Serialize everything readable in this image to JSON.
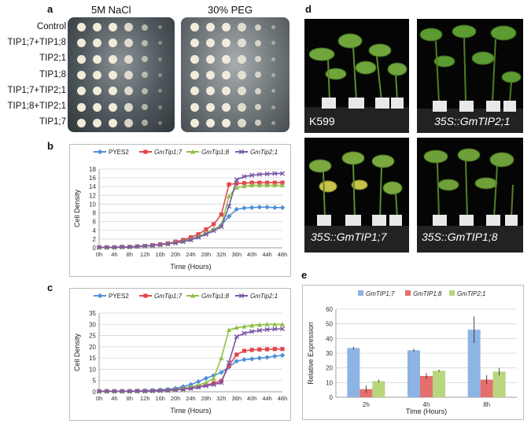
{
  "panel_labels": {
    "a": "a",
    "b": "b",
    "c": "c",
    "d": "d",
    "e": "e"
  },
  "panel_a": {
    "plate_titles": [
      "5M NaCl",
      "30% PEG"
    ],
    "rows": [
      "Control",
      "TIP1;7+TIP1;8",
      "TIP2;1",
      "TIP1;8",
      "TIP1;7+TIP2;1",
      "TIP1;8+TIP2;1",
      "TIP1;7"
    ],
    "colors": {
      "plate_nacl": "#4f585d",
      "plate_peg": "#6f7679",
      "colony": "#f1ecd9"
    }
  },
  "panel_d": {
    "photo_labels": [
      "K599",
      "35S::GmTIP2;1",
      "35S::GmTIP1;7",
      "35S::GmTIP1;8"
    ]
  },
  "chart_data": [
    {
      "id": "b",
      "type": "line",
      "title": "",
      "xlabel": "Time (Hours)",
      "ylabel": "Cell Density",
      "x": [
        "0h",
        "2h",
        "4h",
        "6h",
        "8h",
        "10h",
        "12h",
        "14h",
        "16h",
        "18h",
        "20h",
        "22h",
        "24h",
        "26h",
        "28h",
        "30h",
        "32h",
        "34h",
        "36h",
        "38h",
        "40h",
        "42h",
        "44h",
        "46h",
        "48h"
      ],
      "xtick_labels": [
        "0h",
        "4h",
        "8h",
        "12h",
        "16h",
        "20h",
        "24h",
        "28h",
        "32h",
        "36h",
        "40h",
        "44h",
        "48h"
      ],
      "ylim": [
        0,
        18
      ],
      "yticks": [
        0,
        2,
        4,
        6,
        8,
        10,
        12,
        14,
        16,
        18
      ],
      "grid": true,
      "legend": "top",
      "series": [
        {
          "name": "PYES2",
          "color": "#4f8fd8",
          "marker": "diamond",
          "values": [
            0.1,
            0.1,
            0.1,
            0.2,
            0.2,
            0.3,
            0.4,
            0.6,
            0.8,
            1.0,
            1.3,
            1.6,
            2.0,
            2.6,
            3.3,
            4.2,
            5.2,
            7.2,
            8.8,
            9.1,
            9.2,
            9.3,
            9.3,
            9.2,
            9.2
          ]
        },
        {
          "name": "GmTip1;7",
          "color": "#e2474c",
          "marker": "square",
          "values": [
            0.1,
            0.1,
            0.1,
            0.2,
            0.2,
            0.3,
            0.4,
            0.6,
            0.8,
            1.0,
            1.4,
            1.8,
            2.4,
            3.1,
            4.2,
            5.4,
            7.6,
            14.5,
            14.7,
            14.8,
            14.9,
            14.9,
            14.9,
            14.9,
            14.9
          ]
        },
        {
          "name": "GmTip1;8",
          "color": "#8fc24a",
          "marker": "triangle",
          "values": [
            0.1,
            0.1,
            0.1,
            0.2,
            0.2,
            0.3,
            0.4,
            0.5,
            0.7,
            0.9,
            1.2,
            1.5,
            1.9,
            2.6,
            3.4,
            4.2,
            5.1,
            11.8,
            13.8,
            14.1,
            14.3,
            14.3,
            14.3,
            14.3,
            14.3
          ]
        },
        {
          "name": "GmTip2;1",
          "color": "#7b56a6",
          "marker": "cross",
          "values": [
            0.1,
            0.1,
            0.1,
            0.2,
            0.2,
            0.3,
            0.4,
            0.5,
            0.7,
            0.9,
            1.1,
            1.4,
            1.8,
            2.4,
            3.1,
            3.9,
            4.8,
            9.5,
            15.6,
            16.3,
            16.6,
            16.8,
            16.9,
            17.0,
            17.0
          ]
        }
      ]
    },
    {
      "id": "c",
      "type": "line",
      "title": "",
      "xlabel": "Time (Hours)",
      "ylabel": "Cell Density",
      "x": [
        "0h",
        "2h",
        "4h",
        "6h",
        "8h",
        "10h",
        "12h",
        "14h",
        "16h",
        "18h",
        "20h",
        "22h",
        "24h",
        "26h",
        "28h",
        "30h",
        "32h",
        "34h",
        "36h",
        "38h",
        "40h",
        "42h",
        "44h",
        "46h",
        "48h"
      ],
      "xtick_labels": [
        "0h",
        "4h",
        "8h",
        "12h",
        "16h",
        "20h",
        "24h",
        "28h",
        "32h",
        "36h",
        "40h",
        "44h",
        "48h"
      ],
      "ylim": [
        0,
        35
      ],
      "yticks": [
        0,
        5,
        10,
        15,
        20,
        25,
        30,
        35
      ],
      "grid": true,
      "legend": "top",
      "series": [
        {
          "name": "PYES2",
          "color": "#4f8fd8",
          "marker": "diamond",
          "values": [
            0.3,
            0.3,
            0.3,
            0.3,
            0.3,
            0.4,
            0.5,
            0.6,
            0.8,
            1.1,
            1.5,
            2.3,
            3.2,
            4.5,
            6.0,
            7.2,
            8.6,
            11.0,
            13.6,
            14.3,
            14.6,
            15.0,
            15.3,
            15.8,
            16.2
          ]
        },
        {
          "name": "GmTip1;7",
          "color": "#e2474c",
          "marker": "square",
          "values": [
            0.2,
            0.2,
            0.2,
            0.2,
            0.2,
            0.3,
            0.3,
            0.4,
            0.5,
            0.6,
            0.8,
            1.2,
            1.6,
            2.2,
            3.0,
            3.8,
            4.8,
            11.5,
            16.5,
            18.2,
            18.6,
            18.8,
            18.9,
            19.0,
            19.0
          ]
        },
        {
          "name": "GmTip1;8",
          "color": "#8fc24a",
          "marker": "triangle",
          "values": [
            0.2,
            0.2,
            0.2,
            0.2,
            0.2,
            0.3,
            0.3,
            0.4,
            0.5,
            0.7,
            1.0,
            1.5,
            2.2,
            3.0,
            4.0,
            6.0,
            15.0,
            27.5,
            28.5,
            29.0,
            29.5,
            29.8,
            30.0,
            30.0,
            30.0
          ]
        },
        {
          "name": "GmTip2;1",
          "color": "#7b56a6",
          "marker": "cross",
          "values": [
            0.2,
            0.2,
            0.2,
            0.2,
            0.2,
            0.3,
            0.3,
            0.4,
            0.5,
            0.6,
            0.8,
            1.1,
            1.5,
            2.0,
            2.6,
            3.2,
            4.0,
            13.0,
            24.5,
            26.0,
            26.8,
            27.3,
            27.7,
            27.9,
            28.0
          ]
        }
      ]
    },
    {
      "id": "e",
      "type": "bar",
      "title": "",
      "xlabel": "Time (Hours)",
      "ylabel": "Relative Expression",
      "categories": [
        "2h",
        "4h",
        "8h"
      ],
      "ylim": [
        0,
        60
      ],
      "yticks": [
        0,
        10,
        20,
        30,
        40,
        50,
        60
      ],
      "grid": true,
      "legend": "top",
      "series": [
        {
          "name": "GmTIP1;7",
          "color": "#8db4e2",
          "values": [
            33.5,
            32.0,
            46.0
          ],
          "errors": [
            1.0,
            1.0,
            9.0
          ]
        },
        {
          "name": "GmTIP1;8",
          "color": "#e46f6c",
          "values": [
            5.5,
            14.5,
            12.0
          ],
          "errors": [
            2.5,
            2.0,
            3.0
          ]
        },
        {
          "name": "GmTIP2;1",
          "color": "#b7d67e",
          "values": [
            11.0,
            18.0,
            17.5
          ],
          "errors": [
            1.0,
            0.8,
            2.5
          ]
        }
      ]
    }
  ]
}
